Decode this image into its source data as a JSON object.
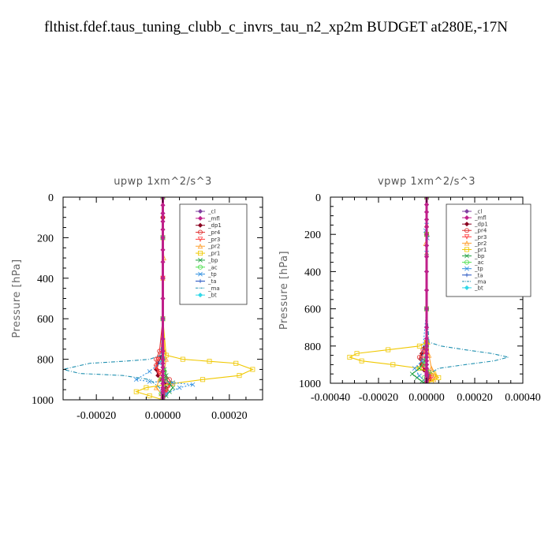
{
  "figure": {
    "title": "flthist.fdef.taus_tuning_clubb_c_invrs_tau_n2_xp2m  BUDGET at280E,-17N"
  },
  "chart_data": [
    {
      "type": "line",
      "title": "upwp   1xm^2/s^3",
      "xlabel": "",
      "ylabel": "Pressure [hPa]",
      "xlim": [
        -0.0003,
        0.0003
      ],
      "ylim": [
        1000,
        0
      ],
      "xticks": [
        -0.0002,
        0.0,
        0.0002
      ],
      "xtick_labels": [
        "-0.00020",
        "0.00000",
        "0.00020"
      ],
      "yticks": [
        0,
        200,
        400,
        600,
        800,
        1000
      ],
      "ytick_labels": [
        "0",
        "200",
        "400",
        "600",
        "800",
        "1000"
      ],
      "grid": false,
      "legend_position": "top-right",
      "series": [
        {
          "name": "_cl",
          "color": "#8040a0",
          "x": [
            0,
            0,
            0,
            0,
            0,
            0,
            0,
            0,
            0,
            0,
            0,
            0,
            0,
            0,
            0,
            0,
            0,
            0,
            0,
            0,
            0,
            0,
            0,
            0,
            0,
            0
          ],
          "y": [
            0,
            40,
            80,
            120,
            160,
            200,
            260,
            320,
            400,
            500,
            600,
            700,
            760,
            800,
            820,
            840,
            860,
            880,
            900,
            920,
            940,
            950,
            960,
            975,
            990,
            1000
          ]
        },
        {
          "name": "_mfl",
          "color": "#c0208a",
          "x": [
            0,
            0,
            0,
            0,
            0,
            0,
            0,
            0,
            0,
            0,
            0,
            0,
            0,
            0,
            0,
            0,
            0,
            0,
            0,
            0,
            0,
            0,
            0,
            0,
            0,
            0
          ],
          "y": [
            0,
            40,
            80,
            120,
            160,
            200,
            260,
            320,
            400,
            500,
            600,
            700,
            760,
            800,
            820,
            840,
            860,
            880,
            900,
            920,
            940,
            950,
            960,
            975,
            990,
            1000
          ]
        },
        {
          "name": "_dp1",
          "color": "#8b0020",
          "x": [
            0,
            0,
            0,
            0,
            0,
            0,
            0,
            -5e-06,
            -1.5e-05,
            -2e-05,
            -1.5e-05,
            -5e-06,
            5e-06,
            1e-05,
            5e-06,
            0,
            0
          ],
          "y": [
            0,
            100,
            200,
            400,
            600,
            700,
            760,
            790,
            820,
            850,
            880,
            900,
            920,
            940,
            960,
            980,
            1000
          ]
        },
        {
          "name": "_pr4",
          "color": "#e03030",
          "x": [
            0,
            0,
            0,
            0,
            0,
            -1e-05,
            -2e-05,
            -2e-05,
            -1e-05,
            5e-06,
            2e-05,
            2.5e-05,
            1e-05,
            0,
            0
          ],
          "y": [
            0,
            100,
            200,
            400,
            600,
            760,
            800,
            830,
            860,
            880,
            900,
            920,
            950,
            980,
            1000
          ]
        },
        {
          "name": "_pr3",
          "color": "#ff4040",
          "x": [
            0,
            0,
            0,
            0,
            -5e-06,
            -1.5e-05,
            -2e-05,
            -1e-05,
            5e-06,
            2e-05,
            1e-05,
            0,
            0
          ],
          "y": [
            0,
            200,
            400,
            600,
            760,
            800,
            840,
            870,
            900,
            930,
            960,
            980,
            1000
          ]
        },
        {
          "name": "_pr2",
          "color": "#ffa030",
          "x": [
            0,
            0,
            3e-06,
            0,
            0,
            5e-06,
            1e-05,
            5e-06,
            -1e-05,
            -2e-05,
            -5e-06,
            0
          ],
          "y": [
            0,
            200,
            300,
            400,
            600,
            760,
            800,
            850,
            900,
            940,
            970,
            1000
          ]
        },
        {
          "name": "_pr1",
          "color": "#f0c800",
          "x": [
            0,
            0,
            0,
            1e-05,
            6e-05,
            0.00014,
            0.00022,
            0.00027,
            0.00023,
            0.00012,
            3e-05,
            -5e-05,
            -8e-05,
            -4e-05,
            0
          ],
          "y": [
            0,
            200,
            600,
            780,
            800,
            810,
            820,
            850,
            880,
            900,
            920,
            940,
            960,
            980,
            1000
          ]
        },
        {
          "name": "_bp",
          "color": "#20a040",
          "x": [
            0,
            0,
            0,
            0,
            5e-06,
            1e-05,
            1e-05,
            2e-05,
            3e-05,
            2e-05,
            1e-05,
            0
          ],
          "y": [
            0,
            200,
            600,
            800,
            850,
            880,
            900,
            920,
            940,
            960,
            980,
            1000
          ]
        },
        {
          "name": "_ac",
          "color": "#50e050",
          "x": [
            0,
            0,
            0,
            0,
            5e-06,
            -5e-06,
            5e-06,
            -5e-06,
            0
          ],
          "y": [
            0,
            200,
            600,
            800,
            860,
            900,
            940,
            970,
            1000
          ]
        },
        {
          "name": "_tp",
          "color": "#3090e0",
          "x": [
            0,
            0,
            0,
            0,
            -1e-05,
            -4e-05,
            -8e-05,
            -4e-05,
            3e-05,
            9e-05,
            5e-05,
            1e-05,
            0
          ],
          "y": [
            0,
            200,
            600,
            780,
            820,
            860,
            900,
            910,
            915,
            925,
            940,
            970,
            1000
          ]
        },
        {
          "name": "_ta",
          "color": "#2050c0",
          "x": [
            0,
            0,
            0,
            0,
            0,
            0,
            0
          ],
          "y": [
            0,
            200,
            400,
            600,
            800,
            900,
            1000
          ]
        },
        {
          "name": "_ma",
          "color": "#2090b0",
          "x": [
            0,
            0,
            0,
            -5e-06,
            -4e-05,
            -0.00012,
            -0.00022,
            -0.0003,
            -0.00025,
            -0.00012,
            -4e-05,
            -1e-05,
            0
          ],
          "y": [
            0,
            200,
            600,
            780,
            800,
            810,
            820,
            850,
            870,
            880,
            900,
            940,
            1000
          ]
        },
        {
          "name": "_bt",
          "color": "#30d8e8",
          "x": [
            0,
            0,
            0,
            0,
            0,
            0,
            0
          ],
          "y": [
            0,
            200,
            400,
            600,
            800,
            900,
            1000
          ]
        }
      ]
    },
    {
      "type": "line",
      "title": "vpwp   1xm^2/s^3",
      "xlabel": "",
      "ylabel": "Pressure [hPa]",
      "xlim": [
        -0.0004,
        0.0004
      ],
      "ylim": [
        1000,
        0
      ],
      "xticks": [
        -0.0004,
        -0.0002,
        0.0,
        0.0002,
        0.0004
      ],
      "xtick_labels": [
        "-0.00040",
        "-0.00020",
        "0.00000",
        "0.00020",
        "0.00040"
      ],
      "yticks": [
        0,
        200,
        400,
        600,
        800,
        1000
      ],
      "ytick_labels": [
        "0",
        "200",
        "400",
        "600",
        "800",
        "1000"
      ],
      "grid": false,
      "legend_position": "top-right",
      "series": [
        {
          "name": "_cl",
          "color": "#8040a0",
          "x": [
            0,
            0,
            0,
            0,
            0,
            0,
            0,
            0,
            0,
            0,
            0,
            0,
            0,
            0,
            0,
            0,
            0,
            0,
            0,
            0,
            0,
            0,
            0,
            0,
            0,
            0
          ],
          "y": [
            0,
            40,
            80,
            120,
            160,
            200,
            260,
            320,
            400,
            500,
            600,
            700,
            760,
            800,
            820,
            840,
            860,
            880,
            900,
            920,
            940,
            950,
            960,
            975,
            990,
            1000
          ]
        },
        {
          "name": "_mfl",
          "color": "#c0208a",
          "x": [
            0,
            0,
            0,
            0,
            0,
            0,
            0,
            0,
            0,
            0,
            0,
            0,
            0,
            0,
            0,
            0,
            0,
            0,
            0,
            0,
            0,
            0,
            0,
            0,
            0,
            0
          ],
          "y": [
            0,
            40,
            80,
            120,
            160,
            200,
            260,
            320,
            400,
            500,
            600,
            700,
            760,
            800,
            820,
            840,
            860,
            880,
            900,
            920,
            940,
            950,
            960,
            975,
            990,
            1000
          ]
        },
        {
          "name": "_dp1",
          "color": "#8b0020",
          "x": [
            0,
            0,
            0,
            0,
            -1e-05,
            -2e-05,
            -2.5e-05,
            -2e-05,
            -1e-05,
            5e-06,
            1e-05,
            0
          ],
          "y": [
            0,
            200,
            600,
            780,
            810,
            840,
            870,
            900,
            930,
            960,
            980,
            1000
          ]
        },
        {
          "name": "_pr4",
          "color": "#e03030",
          "x": [
            0,
            0,
            0,
            0,
            -1.5e-05,
            -3e-05,
            -2e-05,
            0,
            2e-05,
            1e-05,
            0
          ],
          "y": [
            0,
            200,
            600,
            780,
            820,
            860,
            900,
            930,
            960,
            980,
            1000
          ]
        },
        {
          "name": "_pr3",
          "color": "#ff4040",
          "x": [
            0,
            0,
            0,
            0,
            -1e-05,
            -2e-05,
            -1.5e-05,
            1e-05,
            2e-05,
            0
          ],
          "y": [
            0,
            200,
            600,
            780,
            830,
            870,
            910,
            940,
            970,
            1000
          ]
        },
        {
          "name": "_pr2",
          "color": "#ffa030",
          "x": [
            0,
            0,
            3e-06,
            -4e-06,
            0,
            0,
            5e-06,
            1e-05,
            2e-05,
            4e-05,
            3e-05,
            0
          ],
          "y": [
            0,
            150,
            200,
            250,
            300,
            600,
            780,
            850,
            920,
            960,
            980,
            1000
          ]
        },
        {
          "name": "_pr1",
          "color": "#f0c800",
          "x": [
            0,
            0,
            0,
            0,
            -3e-05,
            -0.00016,
            -0.00029,
            -0.00032,
            -0.00027,
            -0.00014,
            -3e-05,
            3e-05,
            5e-05,
            2e-05,
            0
          ],
          "y": [
            0,
            200,
            600,
            780,
            800,
            820,
            840,
            860,
            880,
            900,
            920,
            950,
            970,
            990,
            1000
          ]
        },
        {
          "name": "_bp",
          "color": "#20a040",
          "x": [
            0,
            0,
            0,
            0,
            -1e-05,
            -3e-05,
            -6e-05,
            -4e-05,
            -2e-05,
            0
          ],
          "y": [
            0,
            200,
            600,
            800,
            880,
            920,
            950,
            970,
            990,
            1000
          ]
        },
        {
          "name": "_ac",
          "color": "#50e050",
          "x": [
            0,
            0,
            0,
            0,
            -1e-05,
            1e-05,
            -1e-05,
            0
          ],
          "y": [
            0,
            200,
            600,
            800,
            900,
            940,
            970,
            1000
          ]
        },
        {
          "name": "_tp",
          "color": "#3090e0",
          "x": [
            0,
            0,
            -4e-06,
            3e-06,
            0,
            0,
            -2e-05,
            -5e-05,
            -3e-05,
            0
          ],
          "y": [
            0,
            150,
            180,
            220,
            300,
            600,
            880,
            920,
            960,
            1000
          ]
        },
        {
          "name": "_ta",
          "color": "#2050c0",
          "x": [
            0,
            0,
            0,
            0,
            0,
            0,
            0
          ],
          "y": [
            0,
            200,
            400,
            600,
            800,
            900,
            1000
          ]
        },
        {
          "name": "_ma",
          "color": "#2090b0",
          "x": [
            0,
            0,
            0,
            1e-05,
            6e-05,
            0.00016,
            0.00027,
            0.00034,
            0.00028,
            0.00016,
            5e-05,
            1e-05,
            0
          ],
          "y": [
            0,
            200,
            600,
            780,
            800,
            820,
            840,
            860,
            880,
            900,
            920,
            950,
            1000
          ]
        },
        {
          "name": "_bt",
          "color": "#30d8e8",
          "x": [
            0,
            0,
            0,
            0,
            0,
            0,
            0
          ],
          "y": [
            0,
            200,
            400,
            600,
            800,
            900,
            1000
          ]
        }
      ]
    }
  ]
}
